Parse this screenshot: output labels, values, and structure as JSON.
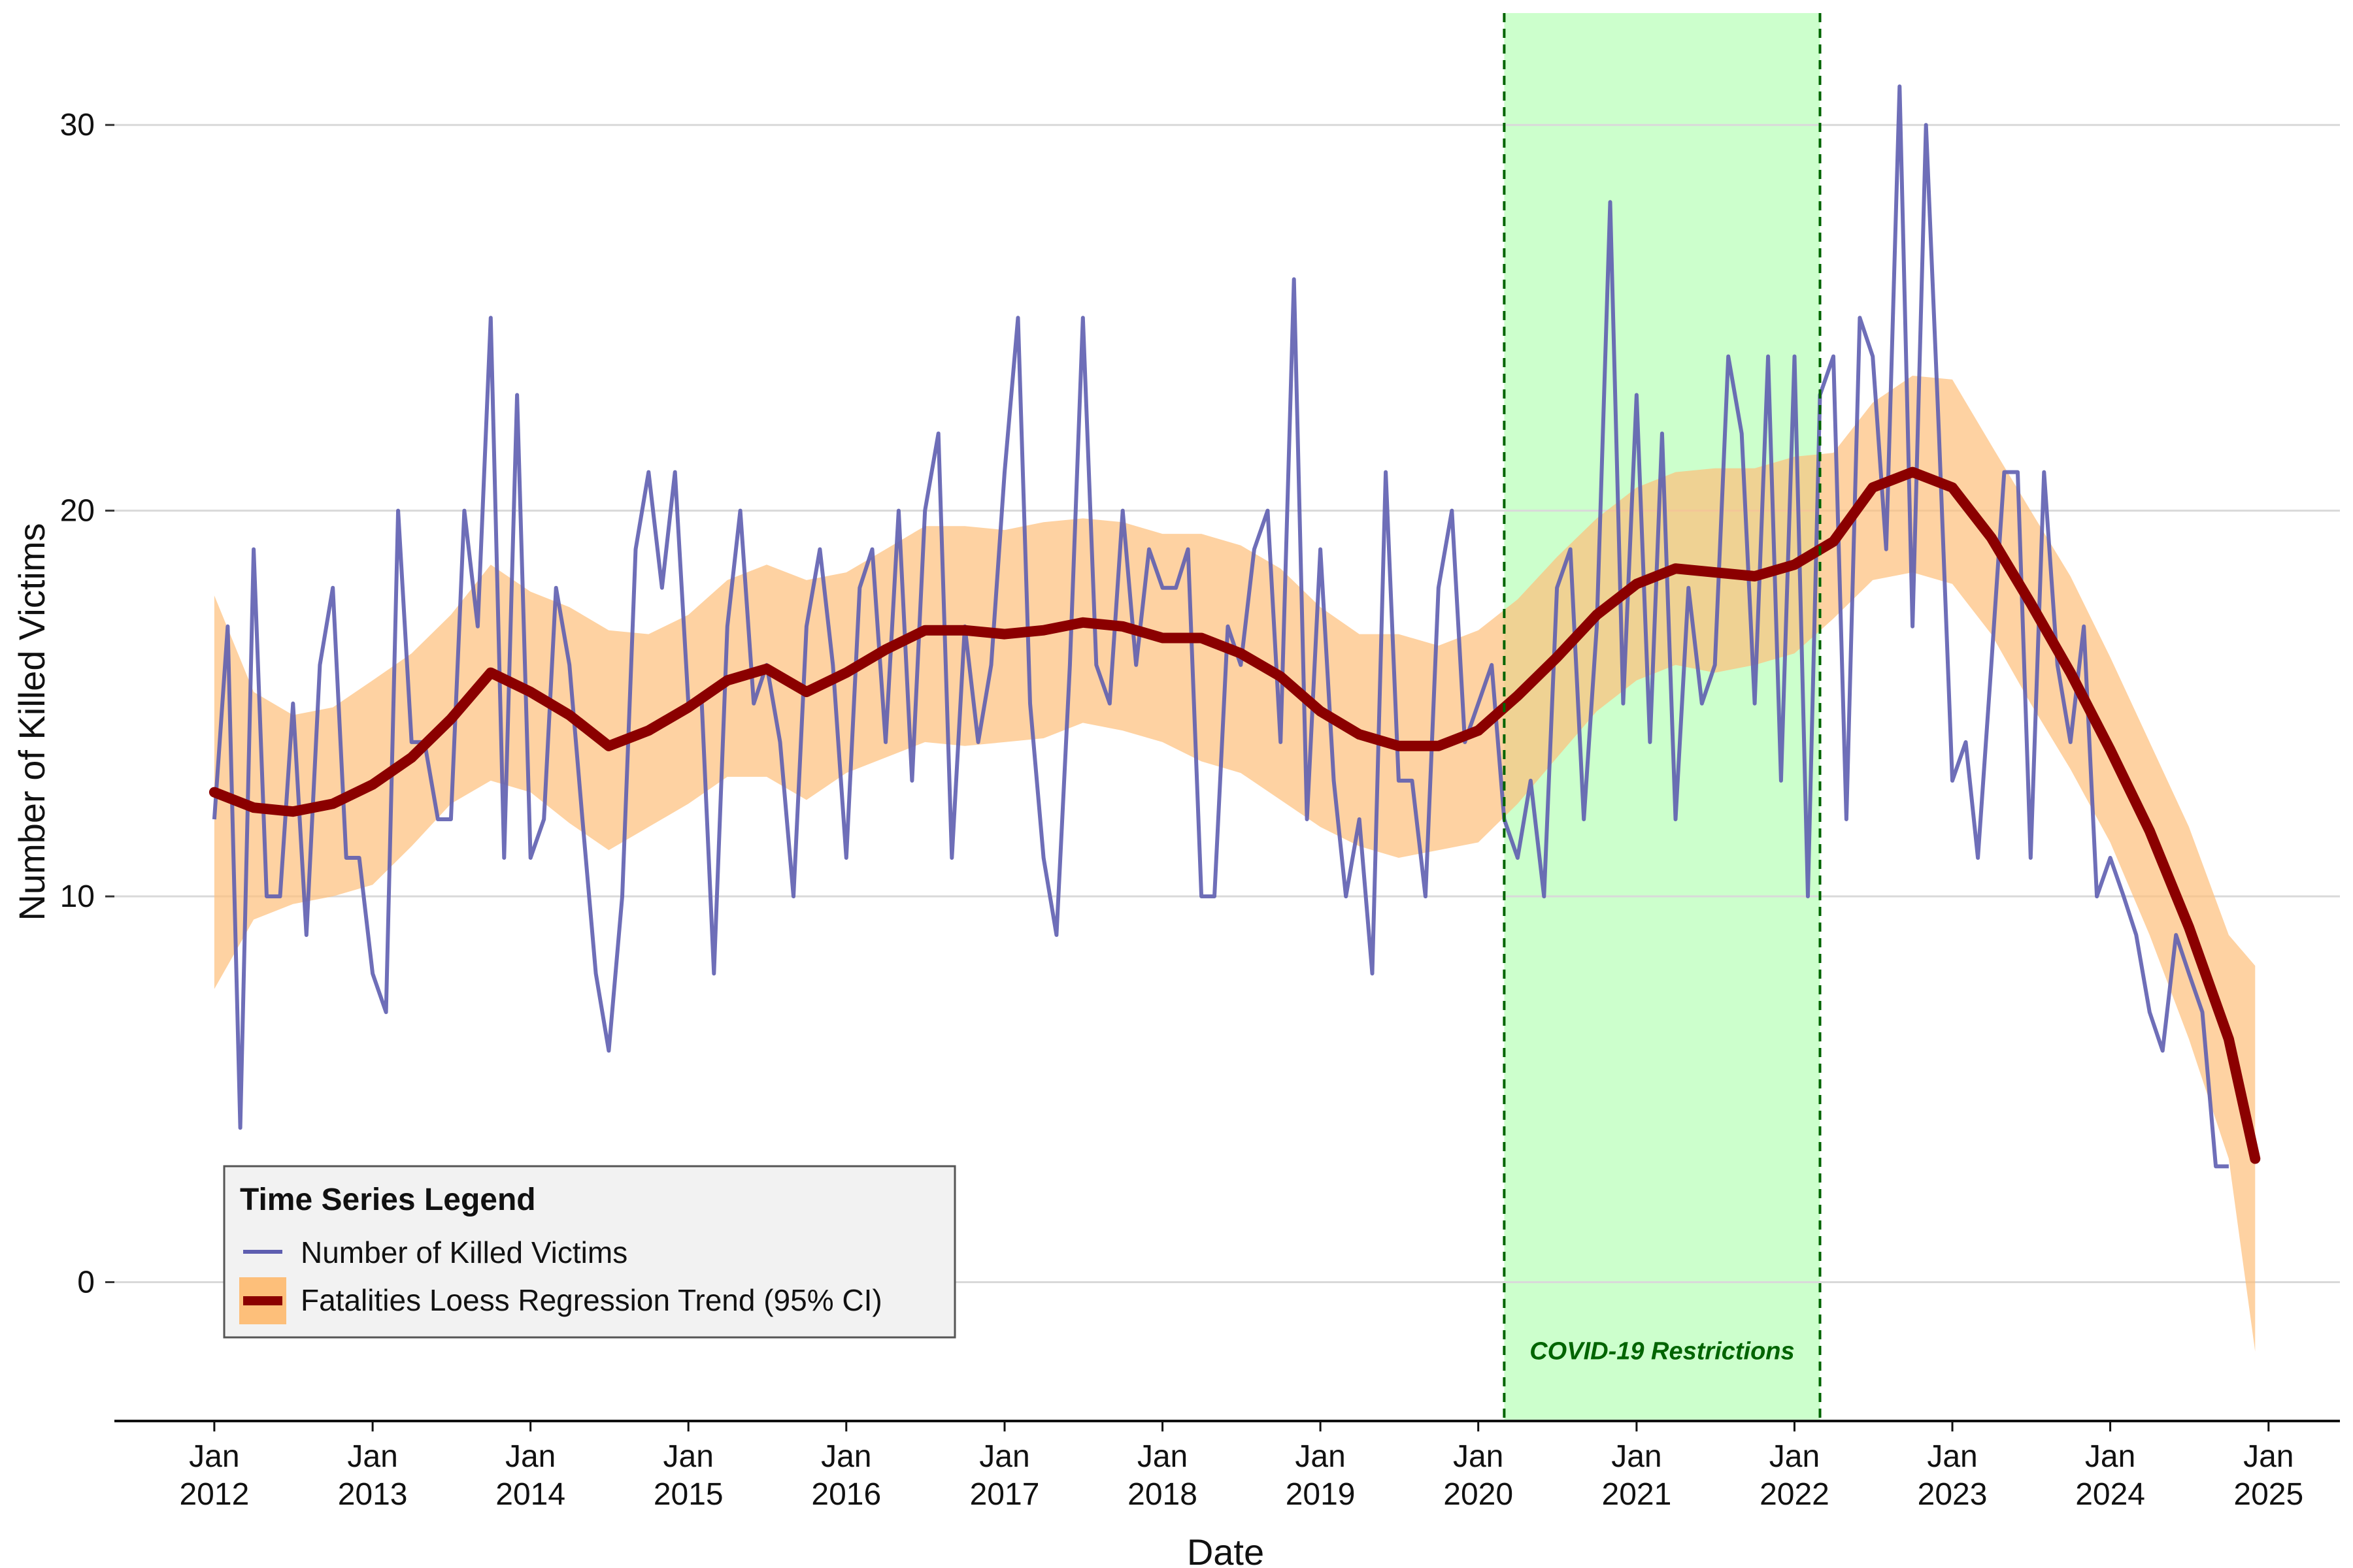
{
  "chart_data": {
    "type": "line",
    "title": "",
    "xlabel": "Date",
    "ylabel": "Number of Killed Victims",
    "ylim": [
      -3.6,
      32.9
    ],
    "yticks": [
      0,
      10,
      20,
      30
    ],
    "xlim": [
      "2011-05-15",
      "2025-06-15"
    ],
    "xticks": [
      {
        "date": "2012-01-01",
        "line1": "Jan",
        "line2": "2012"
      },
      {
        "date": "2013-01-01",
        "line1": "Jan",
        "line2": "2013"
      },
      {
        "date": "2014-01-01",
        "line1": "Jan",
        "line2": "2014"
      },
      {
        "date": "2015-01-01",
        "line1": "Jan",
        "line2": "2015"
      },
      {
        "date": "2016-01-01",
        "line1": "Jan",
        "line2": "2016"
      },
      {
        "date": "2017-01-01",
        "line1": "Jan",
        "line2": "2017"
      },
      {
        "date": "2018-01-01",
        "line1": "Jan",
        "line2": "2018"
      },
      {
        "date": "2019-01-01",
        "line1": "Jan",
        "line2": "2019"
      },
      {
        "date": "2020-01-01",
        "line1": "Jan",
        "line2": "2020"
      },
      {
        "date": "2021-01-01",
        "line1": "Jan",
        "line2": "2021"
      },
      {
        "date": "2022-01-01",
        "line1": "Jan",
        "line2": "2022"
      },
      {
        "date": "2023-01-01",
        "line1": "Jan",
        "line2": "2023"
      },
      {
        "date": "2024-01-01",
        "line1": "Jan",
        "line2": "2024"
      },
      {
        "date": "2025-01-01",
        "line1": "Jan",
        "line2": "2025"
      }
    ],
    "grid": "horizontal major only",
    "legend": {
      "title": "Time Series Legend",
      "placement": "bottom-left",
      "items": [
        {
          "label": "Number of Killed Victims",
          "kind": "line",
          "color": "#5e5eb0"
        },
        {
          "label": "Fatalities Loess Regression Trend (95% CI)",
          "kind": "trend",
          "color": "#8b0000",
          "fill": "#fdbf7a"
        }
      ]
    },
    "shaded_period": {
      "start": "2020-03-01",
      "end": "2022-03-01",
      "label": "COVID-19 Restrictions",
      "fill": "#ccffcc",
      "line_color": "#006400"
    },
    "series": [
      {
        "name": "Number of Killed Victims",
        "color": "#5e5eb0",
        "start": "2012-01-01",
        "frequency": "monthly",
        "values": [
          12,
          17,
          4,
          19,
          10,
          10,
          15,
          9,
          16,
          18,
          11,
          11,
          8,
          7,
          20,
          14,
          14,
          12,
          12,
          20,
          17,
          25,
          11,
          23,
          11,
          12,
          18,
          16,
          12,
          8,
          6,
          10,
          19,
          21,
          18,
          21,
          15,
          15,
          8,
          17,
          20,
          15,
          16,
          14,
          10,
          17,
          19,
          16,
          11,
          18,
          19,
          14,
          20,
          13,
          20,
          22,
          11,
          17,
          14,
          16,
          21,
          25,
          15,
          11,
          9,
          16,
          25,
          16,
          15,
          20,
          16,
          19,
          18,
          18,
          19,
          10,
          10,
          17,
          16,
          19,
          20,
          14,
          26,
          12,
          19,
          13,
          10,
          12,
          8,
          21,
          13,
          13,
          10,
          18,
          20,
          14,
          15,
          16,
          12,
          11,
          13,
          10,
          18,
          19,
          12,
          17,
          28,
          15,
          23,
          14,
          22,
          12,
          18,
          15,
          16,
          24,
          22,
          15,
          24,
          13,
          24,
          10,
          23,
          24,
          12,
          25,
          24,
          19,
          31,
          17,
          30,
          22,
          13,
          14,
          11,
          16,
          21,
          21,
          11,
          21,
          16,
          14,
          17,
          10,
          11,
          10,
          9,
          7,
          6,
          9,
          8,
          7,
          3,
          3
        ]
      },
      {
        "name": "Fatalities Loess Regression Trend (95% CI)",
        "color": "#8b0000",
        "ci_fill": "#fdbf7a",
        "x": [
          "2012-01-01",
          "2012-04-01",
          "2012-07-01",
          "2012-10-01",
          "2013-01-01",
          "2013-04-01",
          "2013-07-01",
          "2013-10-01",
          "2014-01-01",
          "2014-04-01",
          "2014-07-01",
          "2014-10-01",
          "2015-01-01",
          "2015-04-01",
          "2015-07-01",
          "2015-10-01",
          "2016-01-01",
          "2016-04-01",
          "2016-07-01",
          "2016-10-01",
          "2017-01-01",
          "2017-04-01",
          "2017-07-01",
          "2017-10-01",
          "2018-01-01",
          "2018-04-01",
          "2018-07-01",
          "2018-10-01",
          "2019-01-01",
          "2019-04-01",
          "2019-07-01",
          "2019-10-01",
          "2020-01-01",
          "2020-04-01",
          "2020-07-01",
          "2020-10-01",
          "2021-01-01",
          "2021-04-01",
          "2021-07-01",
          "2021-10-01",
          "2022-01-01",
          "2022-04-01",
          "2022-07-01",
          "2022-10-01",
          "2023-01-01",
          "2023-04-01",
          "2023-07-01",
          "2023-10-01",
          "2024-01-01",
          "2024-04-01",
          "2024-07-01",
          "2024-10-01",
          "2024-12-01"
        ],
        "y": [
          12.7,
          12.3,
          12.2,
          12.4,
          12.9,
          13.6,
          14.6,
          15.8,
          15.3,
          14.7,
          13.9,
          14.3,
          14.9,
          15.6,
          15.9,
          15.3,
          15.8,
          16.4,
          16.9,
          16.9,
          16.8,
          16.9,
          17.1,
          17.0,
          16.7,
          16.7,
          16.3,
          15.7,
          14.8,
          14.2,
          13.9,
          13.9,
          14.3,
          15.2,
          16.2,
          17.3,
          18.1,
          18.5,
          18.4,
          18.3,
          18.6,
          19.2,
          20.6,
          21.0,
          20.6,
          19.3,
          17.6,
          15.8,
          13.8,
          11.7,
          9.2,
          6.3,
          3.2
        ],
        "lower": [
          7.6,
          9.4,
          9.8,
          10.0,
          10.3,
          11.3,
          12.4,
          13.0,
          12.7,
          11.9,
          11.2,
          11.8,
          12.4,
          13.1,
          13.1,
          12.5,
          13.2,
          13.6,
          14.0,
          13.9,
          14.0,
          14.1,
          14.5,
          14.3,
          14.0,
          13.5,
          13.2,
          12.5,
          11.8,
          11.3,
          11.0,
          11.2,
          11.4,
          12.4,
          13.6,
          14.8,
          15.6,
          16.0,
          15.8,
          16.0,
          16.3,
          17.2,
          18.2,
          18.4,
          18.1,
          16.8,
          15.0,
          13.3,
          11.4,
          9.0,
          6.3,
          3.2,
          -1.8
        ],
        "upper": [
          17.8,
          15.3,
          14.7,
          14.9,
          15.6,
          16.3,
          17.3,
          18.6,
          17.9,
          17.5,
          16.9,
          16.8,
          17.3,
          18.2,
          18.6,
          18.2,
          18.4,
          19.0,
          19.6,
          19.6,
          19.5,
          19.7,
          19.8,
          19.7,
          19.4,
          19.4,
          19.1,
          18.5,
          17.5,
          16.8,
          16.8,
          16.5,
          16.9,
          17.7,
          18.8,
          19.8,
          20.6,
          21.0,
          21.1,
          21.1,
          21.4,
          21.5,
          22.8,
          23.5,
          23.4,
          21.7,
          20.0,
          18.3,
          16.2,
          14.0,
          11.8,
          9.0,
          8.2
        ]
      }
    ]
  }
}
